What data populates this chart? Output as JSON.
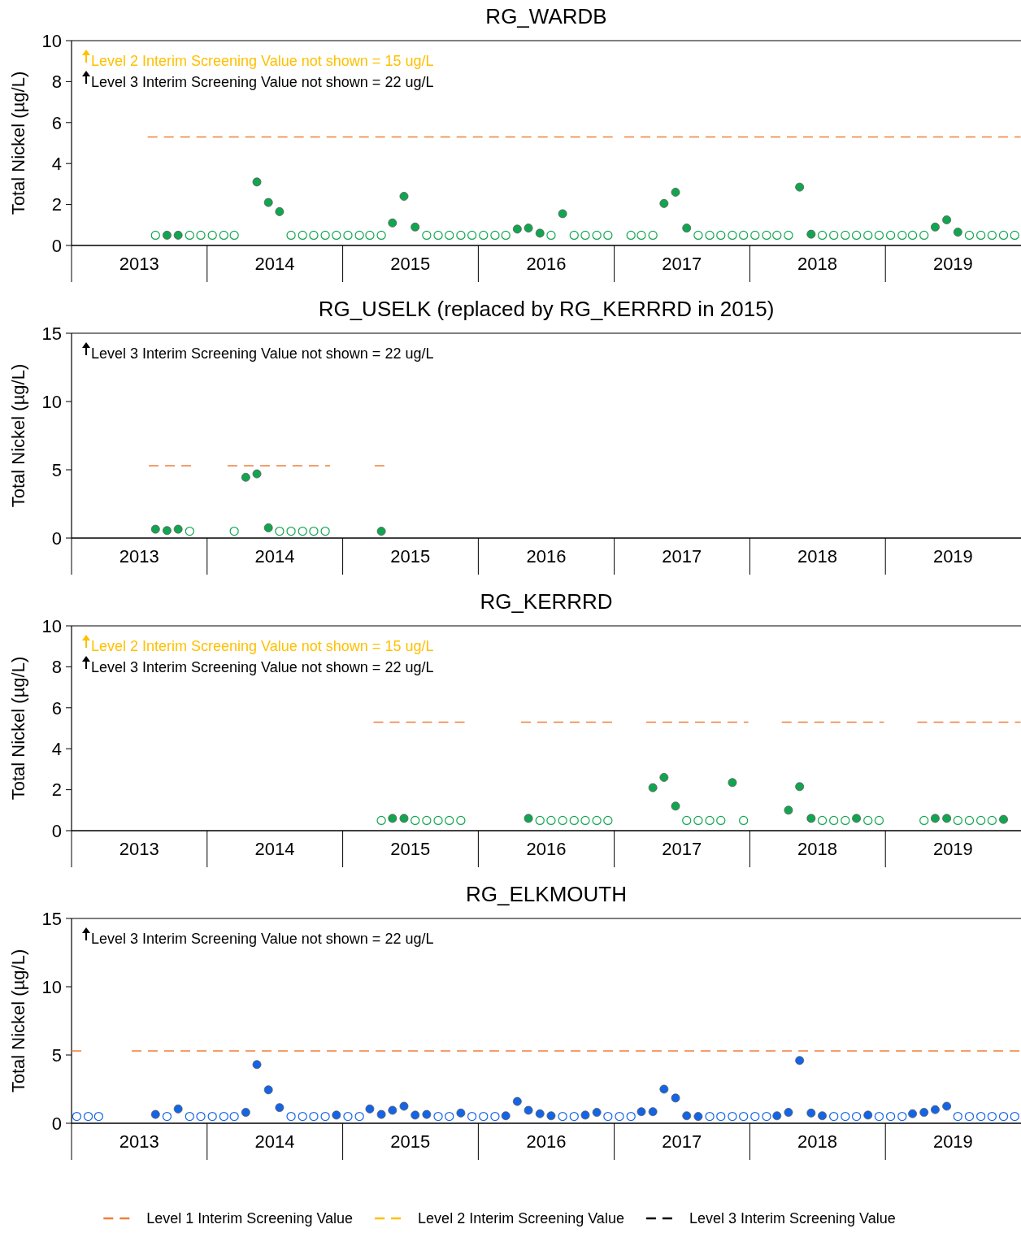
{
  "chart_data": [
    {
      "type": "scatter",
      "title": "RG_WARDB",
      "ylabel": "Total Nickel (µg/L)",
      "xlim": [
        "2013-01-01",
        "2020-01-01"
      ],
      "xticks": [
        {
          "value": "2013-01-01",
          "label": null
        },
        {
          "value": "2013-07-02",
          "label": "2013"
        },
        {
          "value": "2014-01-01",
          "label": null
        },
        {
          "value": "2014-07-02",
          "label": "2014"
        },
        {
          "value": "2015-01-01",
          "label": null
        },
        {
          "value": "2015-07-02",
          "label": "2015"
        },
        {
          "value": "2016-01-01",
          "label": null
        },
        {
          "value": "2016-07-02",
          "label": "2016"
        },
        {
          "value": "2017-01-01",
          "label": null
        },
        {
          "value": "2017-07-02",
          "label": "2017"
        },
        {
          "value": "2018-01-01",
          "label": null
        },
        {
          "value": "2018-07-02",
          "label": "2018"
        },
        {
          "value": "2019-01-01",
          "label": null
        },
        {
          "value": "2019-07-02",
          "label": "2019"
        }
      ],
      "ylim": [
        0,
        10
      ],
      "yticks": [
        0,
        2,
        4,
        6,
        8,
        10
      ],
      "grid": false,
      "legend": false,
      "marker": "circle",
      "annotations": [
        "Level 2 Interim Screening Value not shown = 15 ug/L",
        "Level 3 Interim Screening Value not shown = 22 ug/L"
      ],
      "series": [
        {
          "type": "line",
          "line_style": "dashed",
          "marker": "none",
          "color": "#f07f3a",
          "x": [
            "2013-07-25",
            "2016-12-28",
            "2017-01-15",
            "2017-01-28",
            "2019-12-31"
          ],
          "values": [
            5.3,
            5.3,
            null,
            5.3,
            5.3
          ]
        },
        {
          "color": "#12a550",
          "x": [
            "2013-09-15",
            "2013-10-15",
            "2014-05-15",
            "2014-06-15",
            "2014-07-15",
            "2015-05-15",
            "2015-06-15",
            "2015-07-15",
            "2016-04-15",
            "2016-05-15",
            "2016-06-15",
            "2016-08-15",
            "2017-05-15",
            "2017-06-15",
            "2017-07-15",
            "2018-05-15",
            "2018-06-15",
            "2019-05-15",
            "2019-06-15",
            "2019-07-15"
          ],
          "values": [
            0.5,
            0.5,
            3.1,
            2.1,
            1.65,
            1.1,
            2.4,
            0.9,
            0.8,
            0.85,
            0.6,
            1.55,
            2.05,
            2.6,
            0.85,
            2.85,
            0.55,
            0.9,
            1.25,
            0.65
          ]
        },
        {
          "color": "#12a550",
          "x": [
            "2013-08-15",
            "2013-11-15",
            "2013-12-15",
            "2014-01-15",
            "2014-02-15",
            "2014-03-15",
            "2014-08-15",
            "2014-09-15",
            "2014-10-15",
            "2014-11-15",
            "2014-12-15",
            "2015-01-15",
            "2015-02-15",
            "2015-03-15",
            "2015-04-15",
            "2015-08-15",
            "2015-09-15",
            "2015-10-15",
            "2015-11-15",
            "2015-12-15",
            "2016-01-15",
            "2016-02-15",
            "2016-03-15",
            "2016-07-15",
            "2016-09-15",
            "2016-10-15",
            "2016-11-15",
            "2016-12-15",
            "2017-02-15",
            "2017-03-15",
            "2017-04-15",
            "2017-08-15",
            "2017-09-15",
            "2017-10-15",
            "2017-11-15",
            "2017-12-15",
            "2018-01-15",
            "2018-02-15",
            "2018-03-15",
            "2018-04-15",
            "2018-07-15",
            "2018-08-15",
            "2018-09-15",
            "2018-10-15",
            "2018-11-15",
            "2018-12-15",
            "2019-01-15",
            "2019-02-15",
            "2019-03-15",
            "2019-04-15",
            "2019-08-15",
            "2019-09-15",
            "2019-10-15",
            "2019-11-15",
            "2019-12-15"
          ],
          "values": [
            0.5,
            0.5,
            0.5,
            0.5,
            0.5,
            0.5,
            0.5,
            0.5,
            0.5,
            0.5,
            0.5,
            0.5,
            0.5,
            0.5,
            0.5,
            0.5,
            0.5,
            0.5,
            0.5,
            0.5,
            0.5,
            0.5,
            0.5,
            0.5,
            0.5,
            0.5,
            0.5,
            0.5,
            0.5,
            0.5,
            0.5,
            0.5,
            0.5,
            0.5,
            0.5,
            0.5,
            0.5,
            0.5,
            0.5,
            0.5,
            0.5,
            0.5,
            0.5,
            0.5,
            0.5,
            0.5,
            0.5,
            0.5,
            0.5,
            0.5,
            0.5,
            0.5,
            0.5,
            0.5,
            0.5
          ]
        }
      ]
    },
    {
      "type": "scatter",
      "title": "RG_USELK (replaced by RG_KERRRD in 2015)",
      "ylabel": "Total Nickel (µg/L)",
      "xlim": [
        "2013-01-01",
        "2020-01-01"
      ],
      "xticks": [
        {
          "value": "2013-01-01",
          "label": null
        },
        {
          "value": "2013-07-02",
          "label": "2013"
        },
        {
          "value": "2014-01-01",
          "label": null
        },
        {
          "value": "2014-07-02",
          "label": "2014"
        },
        {
          "value": "2015-01-01",
          "label": null
        },
        {
          "value": "2015-07-02",
          "label": "2015"
        },
        {
          "value": "2016-01-01",
          "label": null
        },
        {
          "value": "2016-07-02",
          "label": "2016"
        },
        {
          "value": "2017-01-01",
          "label": null
        },
        {
          "value": "2017-07-02",
          "label": "2017"
        },
        {
          "value": "2018-01-01",
          "label": null
        },
        {
          "value": "2018-07-02",
          "label": "2018"
        },
        {
          "value": "2019-01-01",
          "label": null
        },
        {
          "value": "2019-07-02",
          "label": "2019"
        }
      ],
      "ylim": [
        0,
        15
      ],
      "yticks": [
        0,
        5,
        10,
        15
      ],
      "grid": false,
      "legend": false,
      "marker": "circle",
      "annotations": [
        "Level 3 Interim Screening Value not shown = 22 ug/L"
      ],
      "series": [
        {
          "type": "line",
          "line_style": "dashed",
          "marker": "none",
          "color": "#f07f3a",
          "x": [
            "2013-07-28",
            "2013-11-28",
            "2014-01-15",
            "2014-02-25",
            "2014-11-28",
            "2015-01-15",
            "2015-03-28",
            "2015-04-28"
          ],
          "values": [
            5.3,
            5.3,
            null,
            5.3,
            5.3,
            null,
            5.3,
            5.3
          ]
        },
        {
          "color": "#12a550",
          "x": [
            "2013-08-15",
            "2013-09-15",
            "2013-10-15",
            "2014-04-15",
            "2014-05-15",
            "2014-06-15",
            "2015-04-15"
          ],
          "values": [
            0.65,
            0.55,
            0.65,
            4.45,
            4.7,
            0.75,
            0.5
          ]
        },
        {
          "color": "#12a550",
          "x": [
            "2013-11-15",
            "2014-03-15",
            "2014-07-15",
            "2014-08-15",
            "2014-09-15",
            "2014-10-15",
            "2014-11-15"
          ],
          "values": [
            0.5,
            0.5,
            0.5,
            0.5,
            0.5,
            0.5,
            0.5
          ]
        }
      ]
    },
    {
      "type": "scatter",
      "title": "RG_KERRRD",
      "ylabel": "Total Nickel (µg/L)",
      "xlim": [
        "2013-01-01",
        "2020-01-01"
      ],
      "xticks": [
        {
          "value": "2013-01-01",
          "label": null
        },
        {
          "value": "2013-07-02",
          "label": "2013"
        },
        {
          "value": "2014-01-01",
          "label": null
        },
        {
          "value": "2014-07-02",
          "label": "2014"
        },
        {
          "value": "2015-01-01",
          "label": null
        },
        {
          "value": "2015-07-02",
          "label": "2015"
        },
        {
          "value": "2016-01-01",
          "label": null
        },
        {
          "value": "2016-07-02",
          "label": "2016"
        },
        {
          "value": "2017-01-01",
          "label": null
        },
        {
          "value": "2017-07-02",
          "label": "2017"
        },
        {
          "value": "2018-01-01",
          "label": null
        },
        {
          "value": "2018-07-02",
          "label": "2018"
        },
        {
          "value": "2019-01-01",
          "label": null
        },
        {
          "value": "2019-07-02",
          "label": "2019"
        }
      ],
      "ylim": [
        0,
        10
      ],
      "yticks": [
        0,
        2,
        4,
        6,
        8,
        10
      ],
      "grid": false,
      "legend": false,
      "marker": "circle",
      "annotations": [
        "Level 2 Interim Screening Value not shown = 15 ug/L",
        "Level 3 Interim Screening Value not shown = 22 ug/L"
      ],
      "series": [
        {
          "type": "line",
          "line_style": "dashed",
          "marker": "none",
          "color": "#f07f3a",
          "x": [
            "2015-03-25",
            "2015-11-28",
            "2016-01-15",
            "2016-04-25",
            "2016-12-30",
            "2017-01-15",
            "2017-03-28",
            "2017-12-28",
            "2018-01-15",
            "2018-03-28",
            "2018-12-28",
            "2019-01-15",
            "2019-03-28",
            "2019-12-31"
          ],
          "values": [
            5.3,
            5.3,
            null,
            5.3,
            5.3,
            null,
            5.3,
            5.3,
            null,
            5.3,
            5.3,
            null,
            5.3,
            5.3
          ]
        },
        {
          "color": "#12a550",
          "x": [
            "2015-05-15",
            "2015-06-15",
            "2016-05-15",
            "2017-04-15",
            "2017-05-15",
            "2017-06-15",
            "2017-11-15",
            "2018-04-15",
            "2018-05-15",
            "2018-06-15",
            "2018-10-15",
            "2019-05-15",
            "2019-06-15",
            "2019-11-15"
          ],
          "values": [
            0.6,
            0.6,
            0.6,
            2.1,
            2.6,
            1.2,
            2.35,
            1.0,
            2.15,
            0.6,
            0.6,
            0.6,
            0.6,
            0.55
          ]
        },
        {
          "color": "#12a550",
          "x": [
            "2015-04-15",
            "2015-07-15",
            "2015-08-15",
            "2015-09-15",
            "2015-10-15",
            "2015-11-15",
            "2016-06-15",
            "2016-07-15",
            "2016-08-15",
            "2016-09-15",
            "2016-10-15",
            "2016-11-15",
            "2016-12-15",
            "2017-07-15",
            "2017-08-15",
            "2017-09-15",
            "2017-10-15",
            "2017-12-15",
            "2018-07-15",
            "2018-08-15",
            "2018-09-15",
            "2018-11-15",
            "2018-12-15",
            "2019-04-15",
            "2019-07-15",
            "2019-08-15",
            "2019-09-15",
            "2019-10-15"
          ],
          "values": [
            0.5,
            0.5,
            0.5,
            0.5,
            0.5,
            0.5,
            0.5,
            0.5,
            0.5,
            0.5,
            0.5,
            0.5,
            0.5,
            0.5,
            0.5,
            0.5,
            0.5,
            0.5,
            0.5,
            0.5,
            0.5,
            0.5,
            0.5,
            0.5,
            0.5,
            0.5,
            0.5,
            0.5
          ]
        }
      ]
    },
    {
      "type": "scatter",
      "title": "RG_ELKMOUTH",
      "ylabel": "Total Nickel (µg/L)",
      "xlim": [
        "2013-01-01",
        "2020-01-01"
      ],
      "xticks": [
        {
          "value": "2013-01-01",
          "label": null
        },
        {
          "value": "2013-07-02",
          "label": "2013"
        },
        {
          "value": "2014-01-01",
          "label": null
        },
        {
          "value": "2014-07-02",
          "label": "2014"
        },
        {
          "value": "2015-01-01",
          "label": null
        },
        {
          "value": "2015-07-02",
          "label": "2015"
        },
        {
          "value": "2016-01-01",
          "label": null
        },
        {
          "value": "2016-07-02",
          "label": "2016"
        },
        {
          "value": "2017-01-01",
          "label": null
        },
        {
          "value": "2017-07-02",
          "label": "2017"
        },
        {
          "value": "2018-01-01",
          "label": null
        },
        {
          "value": "2018-07-02",
          "label": "2018"
        },
        {
          "value": "2019-01-01",
          "label": null
        },
        {
          "value": "2019-07-02",
          "label": "2019"
        }
      ],
      "ylim": [
        0,
        15
      ],
      "yticks": [
        0,
        5,
        10,
        15
      ],
      "grid": false,
      "legend": "bottom",
      "marker": "circle",
      "annotations": [
        "Level 3 Interim Screening Value not shown = 22 ug/L"
      ],
      "series": [
        {
          "type": "line",
          "name": "Level 1 Interim Screening Value",
          "line_style": "dashed",
          "marker": "none",
          "color": "#f07f3a",
          "x": [
            "2013-01-01",
            "2013-02-10",
            "2013-04-15",
            "2013-06-12",
            "2019-12-31"
          ],
          "values": [
            5.3,
            5.3,
            null,
            5.3,
            5.3
          ]
        },
        {
          "type": "line",
          "name": "Level 2 Interim Screening Value",
          "line_style": "dashed",
          "marker": "none",
          "color": "#ffc000"
        },
        {
          "type": "line",
          "name": "Level 3 Interim Screening Value",
          "line_style": "dashed",
          "marker": "none",
          "color": "#000000"
        },
        {
          "color": "#1464e6",
          "x": [
            "2013-08-15",
            "2013-10-15",
            "2014-04-15",
            "2014-05-15",
            "2014-06-15",
            "2014-07-15",
            "2014-12-15",
            "2015-03-15",
            "2015-04-15",
            "2015-05-15",
            "2015-06-15",
            "2015-07-15",
            "2015-08-15",
            "2015-11-15",
            "2016-03-15",
            "2016-04-15",
            "2016-05-15",
            "2016-06-15",
            "2016-07-15",
            "2016-10-15",
            "2016-11-15",
            "2017-03-15",
            "2017-04-15",
            "2017-05-15",
            "2017-06-15",
            "2017-07-15",
            "2017-08-15",
            "2018-03-15",
            "2018-04-15",
            "2018-05-15",
            "2018-06-15",
            "2018-07-15",
            "2018-11-15",
            "2019-03-15",
            "2019-04-15",
            "2019-05-15",
            "2019-06-15"
          ],
          "values": [
            0.65,
            1.05,
            0.8,
            4.3,
            2.45,
            1.15,
            0.6,
            1.05,
            0.65,
            0.95,
            1.25,
            0.6,
            0.65,
            0.75,
            0.55,
            1.6,
            0.95,
            0.7,
            0.55,
            0.6,
            0.8,
            0.85,
            0.85,
            2.5,
            1.85,
            0.55,
            0.5,
            0.55,
            0.8,
            4.6,
            0.75,
            0.55,
            0.6,
            0.7,
            0.8,
            1.0,
            1.25
          ]
        },
        {
          "color": "#1464e6",
          "x": [
            "2013-01-15",
            "2013-02-15",
            "2013-03-15",
            "2013-09-15",
            "2013-11-15",
            "2013-12-15",
            "2014-01-15",
            "2014-02-15",
            "2014-03-15",
            "2014-08-15",
            "2014-09-15",
            "2014-10-15",
            "2014-11-15",
            "2015-01-15",
            "2015-02-15",
            "2015-09-15",
            "2015-10-15",
            "2015-12-15",
            "2016-01-15",
            "2016-02-15",
            "2016-08-15",
            "2016-09-15",
            "2016-12-15",
            "2017-01-15",
            "2017-02-15",
            "2017-09-15",
            "2017-10-15",
            "2017-11-15",
            "2017-12-15",
            "2018-01-15",
            "2018-02-15",
            "2018-08-15",
            "2018-09-15",
            "2018-10-15",
            "2018-12-15",
            "2019-01-15",
            "2019-02-15",
            "2019-07-15",
            "2019-08-15",
            "2019-09-15",
            "2019-10-15",
            "2019-11-15",
            "2019-12-15"
          ],
          "values": [
            0.5,
            0.5,
            0.5,
            0.5,
            0.5,
            0.5,
            0.5,
            0.5,
            0.5,
            0.5,
            0.5,
            0.5,
            0.5,
            0.5,
            0.5,
            0.5,
            0.5,
            0.5,
            0.5,
            0.5,
            0.5,
            0.5,
            0.5,
            0.5,
            0.5,
            0.5,
            0.5,
            0.5,
            0.5,
            0.5,
            0.5,
            0.5,
            0.5,
            0.5,
            0.5,
            0.5,
            0.5,
            0.5,
            0.5,
            0.5,
            0.5,
            0.5,
            0.5
          ]
        }
      ]
    }
  ]
}
